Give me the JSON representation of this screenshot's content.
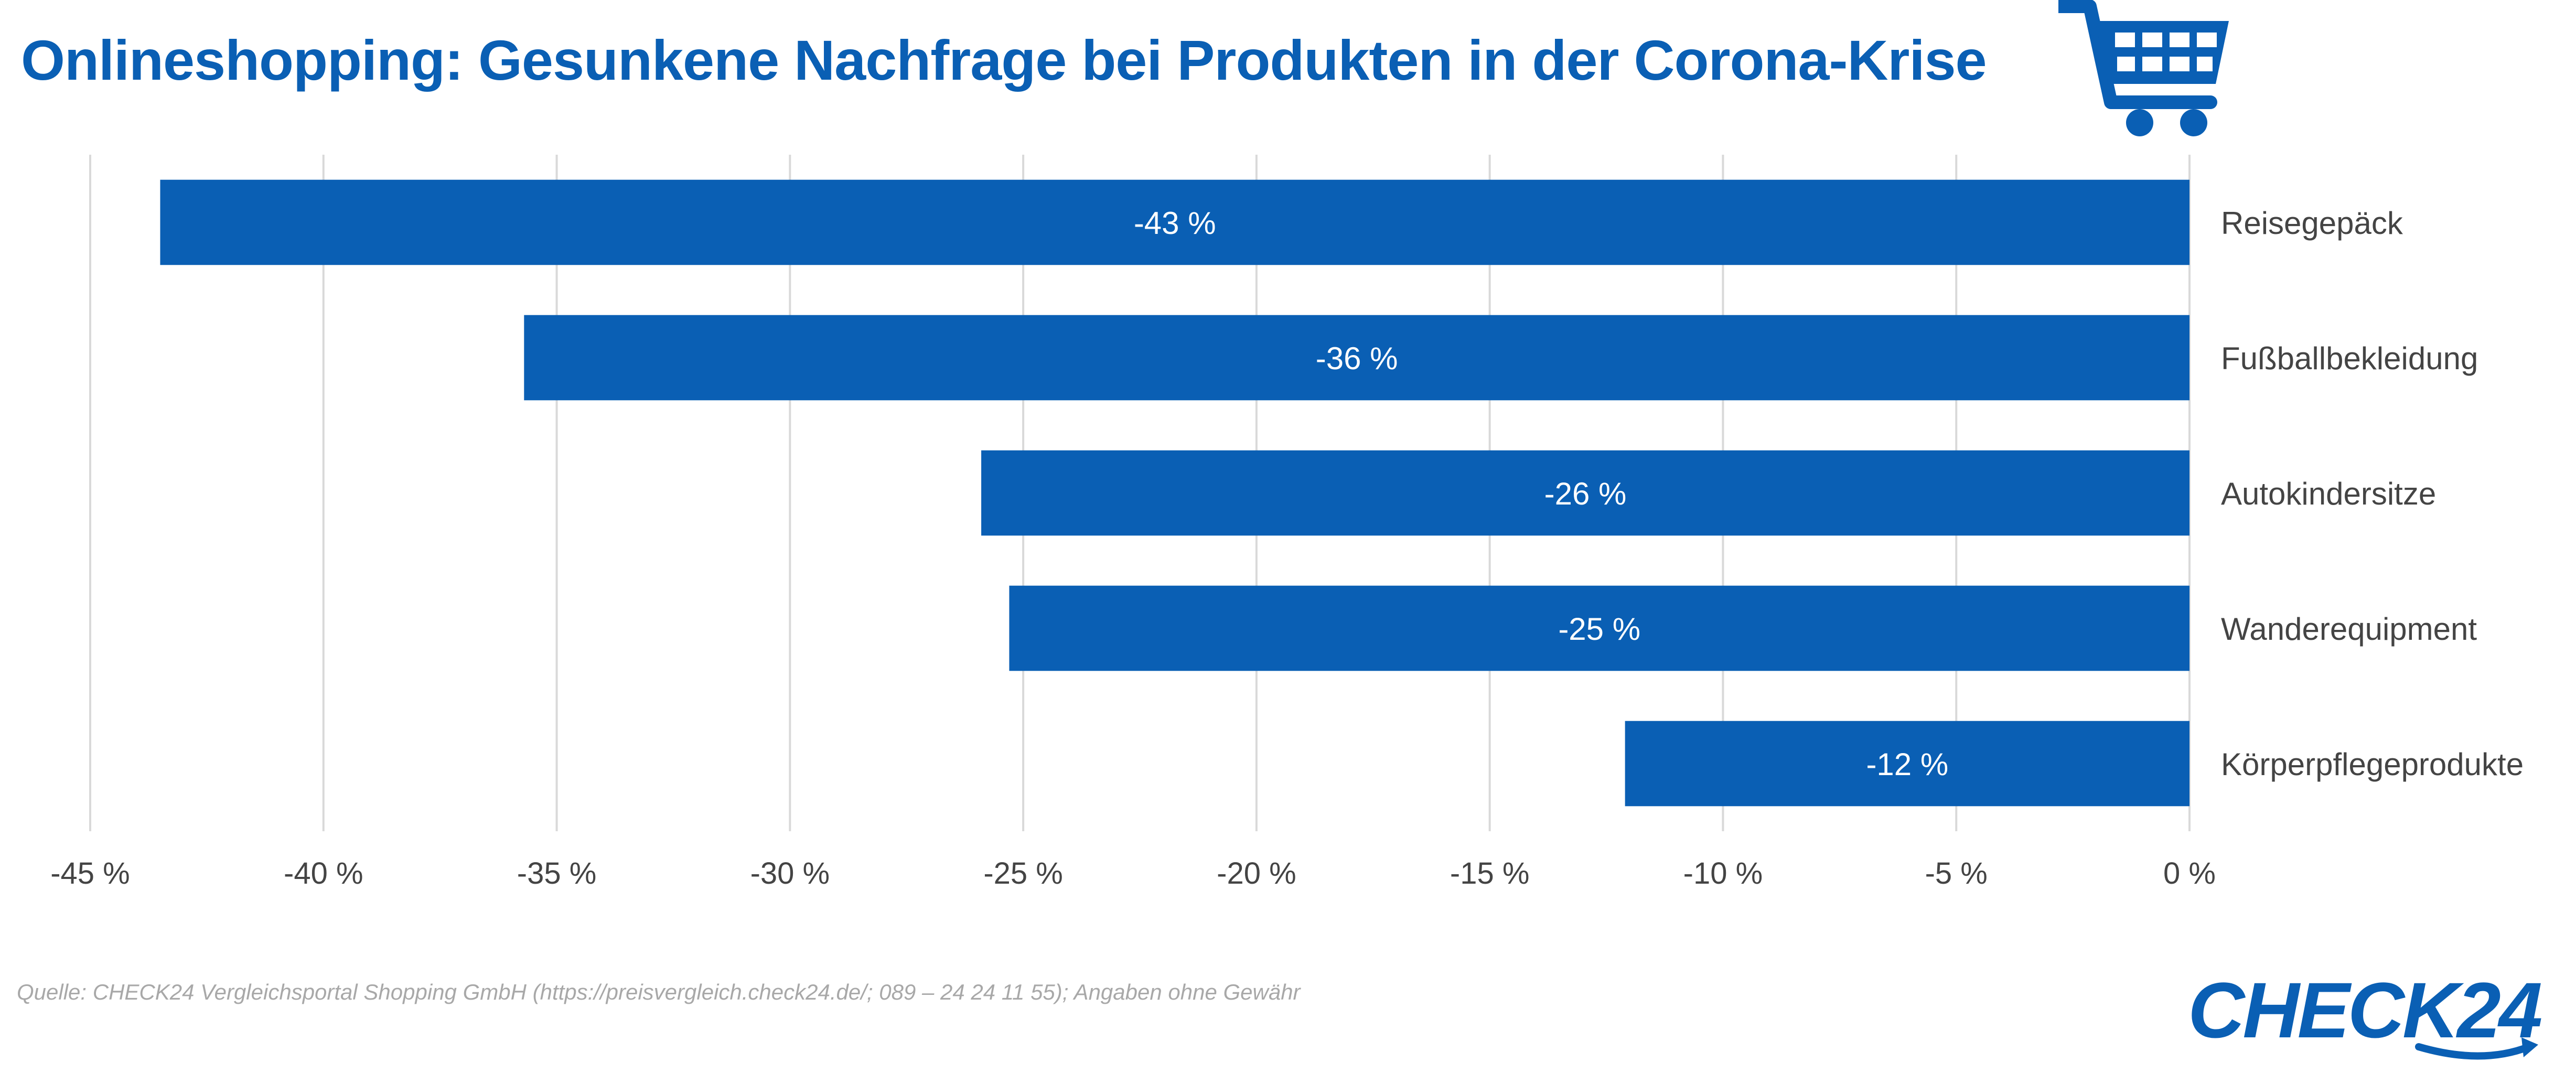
{
  "header": {
    "title": "Onlineshopping: Gesunkene Nachfrage bei Produkten in der Corona-Krise"
  },
  "icons": {
    "cart": "shopping-cart-icon",
    "brand_swoosh": "circular-arrow-icon"
  },
  "colors": {
    "accent": "#0a5fb4",
    "grid": "#d9d9d9",
    "axis_text": "#444444",
    "source_text": "#a8a8a8"
  },
  "chart_data": {
    "type": "bar",
    "orientation": "horizontal",
    "categories": [
      "Reisegepäck",
      "Fußballbekleidung",
      "Autokindersitze",
      "Wanderequipment",
      "Körperpflegeprodukte"
    ],
    "values": [
      -43.5,
      -35.7,
      -25.9,
      -25.3,
      -12.1
    ],
    "data_labels": [
      "-43 %",
      "-36 %",
      "-26 %",
      "-25 %",
      "-12 %"
    ],
    "xlim": [
      -45,
      0
    ],
    "xticks": [
      -45,
      -40,
      -35,
      -30,
      -25,
      -20,
      -15,
      -10,
      -5,
      0
    ],
    "xtick_labels": [
      "-45 %",
      "-40 %",
      "-35 %",
      "-30 %",
      "-25 %",
      "-20 %",
      "-15 %",
      "-10 %",
      "-5 %",
      "0 %"
    ],
    "grid": true,
    "legend": "none",
    "title": "Onlineshopping: Gesunkene Nachfrage bei Produkten in der Corona-Krise",
    "xlabel": "",
    "ylabel": ""
  },
  "footer": {
    "source": "Quelle: CHECK24 Vergleichsportal Shopping GmbH (https://preisvergleich.check24.de/; 089 – 24 24 11 55); Angaben ohne Gewähr",
    "brand": "CHECK24"
  }
}
